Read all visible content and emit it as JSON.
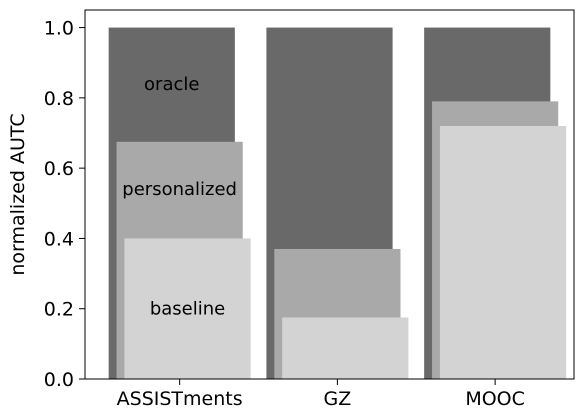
{
  "chart_data": {
    "type": "bar",
    "title": "",
    "xlabel": "",
    "ylabel": "normalized AUTC",
    "ylim": [
      0,
      1.05
    ],
    "yticks": [
      0.0,
      0.2,
      0.4,
      0.6,
      0.8,
      1.0
    ],
    "ytick_labels": [
      "0.0",
      "0.2",
      "0.4",
      "0.6",
      "0.8",
      "1.0"
    ],
    "categories": [
      "ASSISTments",
      "GZ",
      "MOOC"
    ],
    "series": [
      {
        "name": "oracle",
        "color": "#696969",
        "values": [
          1.0,
          1.0,
          1.0
        ]
      },
      {
        "name": "personalized",
        "color": "#a9a9a9",
        "values": [
          0.675,
          0.37,
          0.79
        ]
      },
      {
        "name": "baseline",
        "color": "#d3d3d3",
        "values": [
          0.4,
          0.175,
          0.72
        ]
      }
    ],
    "annotations": [
      {
        "text": "oracle",
        "category": "ASSISTments",
        "series": "oracle",
        "y": 0.84
      },
      {
        "text": "personalized",
        "category": "ASSISTments",
        "series": "personalized",
        "y": 0.54
      },
      {
        "text": "baseline",
        "category": "ASSISTments",
        "series": "baseline",
        "y": 0.2
      }
    ],
    "grid": false,
    "legend": "none"
  }
}
